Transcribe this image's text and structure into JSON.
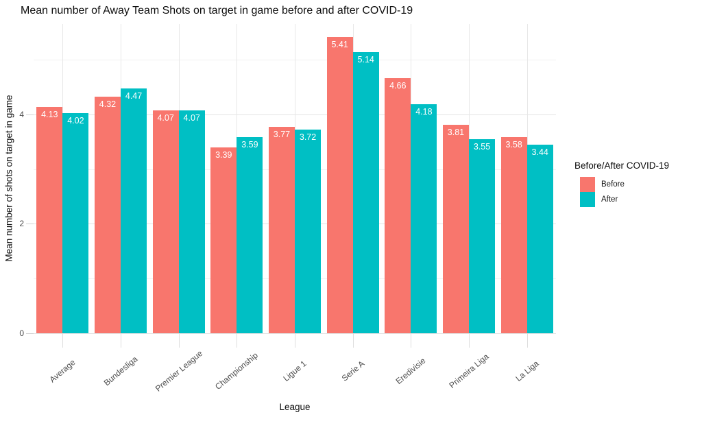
{
  "chart_data": {
    "type": "bar",
    "title": "Mean number of Away Team Shots on target in game before and after COVID-19",
    "xlabel": "League",
    "ylabel": "Mean number of shots on target in game",
    "legend_title": "Before/After COVID-19",
    "legend_position": "right",
    "grid": true,
    "categories": [
      "Average",
      "Bundesliga",
      "Premier League",
      "Championship",
      "Ligue 1",
      "Serie A",
      "Eredivisie",
      "Primeira Liga",
      "La Liga"
    ],
    "series": [
      {
        "name": "Before",
        "color": "#F8766D",
        "values": [
          4.13,
          4.32,
          4.07,
          3.39,
          3.77,
          5.41,
          4.66,
          3.81,
          3.58
        ]
      },
      {
        "name": "After",
        "color": "#00BFC4",
        "values": [
          4.02,
          4.47,
          4.07,
          3.59,
          3.72,
          5.14,
          4.18,
          3.55,
          3.44
        ]
      }
    ],
    "y_ticks": [
      0,
      2,
      4
    ],
    "y_minor_ticks": [
      1,
      3,
      5
    ],
    "ylim": [
      0,
      5.65
    ],
    "bar_label_decimals": 2,
    "colors": {
      "grid_major": "#e3e3e3",
      "grid_minor": "#f1f1f1",
      "tick_label": "#4d4d4d",
      "bar_label": "#ffffff"
    }
  }
}
